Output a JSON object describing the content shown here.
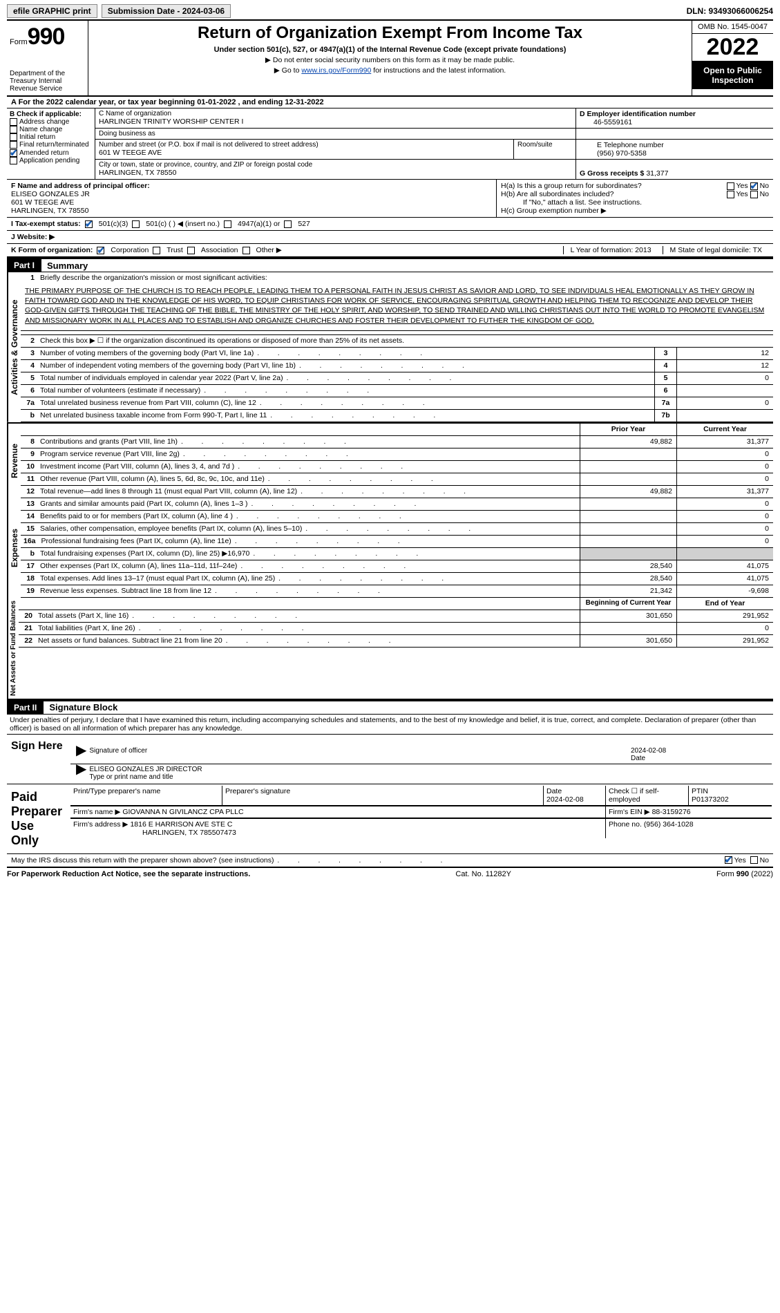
{
  "topbar": {
    "efile_label": "efile GRAPHIC print",
    "submission_label": "Submission Date - 2024-03-06",
    "dln_label": "DLN: 93493066006254"
  },
  "header": {
    "form_word": "Form",
    "form_number": "990",
    "dept": "Department of the Treasury Internal Revenue Service",
    "title": "Return of Organization Exempt From Income Tax",
    "subtitle": "Under section 501(c), 527, or 4947(a)(1) of the Internal Revenue Code (except private foundations)",
    "note1": "▶ Do not enter social security numbers on this form as it may be made public.",
    "note2_pre": "▶ Go to ",
    "note2_link": "www.irs.gov/Form990",
    "note2_post": " for instructions and the latest information.",
    "omb": "OMB No. 1545-0047",
    "year": "2022",
    "open_pub": "Open to Public Inspection"
  },
  "line_a": "A For the 2022 calendar year, or tax year beginning 01-01-2022   , and ending 12-31-2022",
  "box_b": {
    "title": "B Check if applicable:",
    "items": [
      "Address change",
      "Name change",
      "Initial return",
      "Final return/terminated",
      "Amended return",
      "Application pending"
    ],
    "checked_index": 4
  },
  "box_c": {
    "label_name": "C Name of organization",
    "org_name": "HARLINGEN TRINITY WORSHIP CENTER I",
    "dba_label": "Doing business as",
    "dba": "",
    "addr_label": "Number and street (or P.O. box if mail is not delivered to street address)",
    "addr": "601 W TEEGE AVE",
    "suite_label": "Room/suite",
    "city_label": "City or town, state or province, country, and ZIP or foreign postal code",
    "city": "HARLINGEN, TX  78550"
  },
  "box_d": {
    "label": "D Employer identification number",
    "value": "46-5559161"
  },
  "box_e": {
    "label": "E Telephone number",
    "value": "(956) 970-5358"
  },
  "box_g": {
    "label": "G Gross receipts $",
    "value": "31,377"
  },
  "box_f": {
    "label": "F  Name and address of principal officer:",
    "name": "ELISEO GONZALES JR",
    "addr1": "601 W TEEGE AVE",
    "addr2": "HARLINGEN, TX  78550"
  },
  "box_h": {
    "ha_label": "H(a)  Is this a group return for subordinates?",
    "ha_yes": "Yes",
    "ha_no": "No",
    "ha_checked": "No",
    "hb_label": "H(b)  Are all subordinates included?",
    "hb_yes": "Yes",
    "hb_no": "No",
    "h_note": "If \"No,\" attach a list. See instructions.",
    "hc_label": "H(c)  Group exemption number ▶"
  },
  "line_i": {
    "label": "I   Tax-exempt status:",
    "opts": [
      "501(c)(3)",
      "501(c) (  ) ◀ (insert no.)",
      "4947(a)(1) or",
      "527"
    ],
    "checked_index": 0
  },
  "line_j": {
    "label": "J   Website: ▶"
  },
  "line_k": {
    "label": "K Form of organization:",
    "opts": [
      "Corporation",
      "Trust",
      "Association",
      "Other ▶"
    ],
    "checked_index": 0,
    "l_label": "L Year of formation: 2013",
    "m_label": "M State of legal domicile: TX"
  },
  "parts": {
    "p1_label": "Part I",
    "p1_title": "Summary",
    "p2_label": "Part II",
    "p2_title": "Signature Block"
  },
  "summary": {
    "line1_label": "Briefly describe the organization's mission or most significant activities:",
    "mission": "THE PRIMARY PURPOSE OF THE CHURCH IS TO REACH PEOPLE, LEADING THEM TO A PERSONAL FAITH IN JESUS CHRIST AS SAVIOR AND LORD, TO SEE INDIVIDUALS HEAL EMOTIONALLY AS THEY GROW IN FAITH TOWARD GOD AND IN THE KNOWLEDGE OF HIS WORD, TO EQUIP CHRISTIANS FOR WORK OF SERVICE, ENCOURAGING SPIRITUAL GROWTH AND HELPING THEM TO RECOGNIZE AND DEVELOP THEIR GOD-GIVEN GIFTS THROUGH THE TEACHING OF THE BIBLE, THE MINISTRY OF THE HOLY SPIRIT, AND WORSHIP, TO SEND TRAINED AND WILLING CHRISTIANS OUT INTO THE WORLD TO PROMOTE EVANGELISM AND MISSIONARY WORK IN ALL PLACES AND TO ESTABLISH AND ORGANIZE CHURCHES AND FOSTER THEIR DEVELOPMENT TO FUTHER THE KINGDOM OF GOD.",
    "line2": "Check this box ▶ ☐  if the organization discontinued its operations or disposed of more than 25% of its net assets.",
    "rows_single": [
      {
        "n": "3",
        "t": "Number of voting members of the governing body (Part VI, line 1a)",
        "box": "3",
        "v": "12"
      },
      {
        "n": "4",
        "t": "Number of independent voting members of the governing body (Part VI, line 1b)",
        "box": "4",
        "v": "12"
      },
      {
        "n": "5",
        "t": "Total number of individuals employed in calendar year 2022 (Part V, line 2a)",
        "box": "5",
        "v": "0"
      },
      {
        "n": "6",
        "t": "Total number of volunteers (estimate if necessary)",
        "box": "6",
        "v": ""
      },
      {
        "n": "7a",
        "t": "Total unrelated business revenue from Part VIII, column (C), line 12",
        "box": "7a",
        "v": "0"
      },
      {
        "n": "b",
        "t": "Net unrelated business taxable income from Form 990-T, Part I, line 11",
        "box": "7b",
        "v": ""
      }
    ],
    "col_hdr_prior": "Prior Year",
    "col_hdr_curr": "Current Year",
    "sections": [
      {
        "side": "Activities & Governance",
        "type": "gov"
      },
      {
        "side": "Revenue",
        "rows": [
          {
            "n": "8",
            "t": "Contributions and grants (Part VIII, line 1h)",
            "p": "49,882",
            "c": "31,377"
          },
          {
            "n": "9",
            "t": "Program service revenue (Part VIII, line 2g)",
            "p": "",
            "c": "0"
          },
          {
            "n": "10",
            "t": "Investment income (Part VIII, column (A), lines 3, 4, and 7d )",
            "p": "",
            "c": "0"
          },
          {
            "n": "11",
            "t": "Other revenue (Part VIII, column (A), lines 5, 6d, 8c, 9c, 10c, and 11e)",
            "p": "",
            "c": "0"
          },
          {
            "n": "12",
            "t": "Total revenue—add lines 8 through 11 (must equal Part VIII, column (A), line 12)",
            "p": "49,882",
            "c": "31,377"
          }
        ]
      },
      {
        "side": "Expenses",
        "rows": [
          {
            "n": "13",
            "t": "Grants and similar amounts paid (Part IX, column (A), lines 1–3 )",
            "p": "",
            "c": "0"
          },
          {
            "n": "14",
            "t": "Benefits paid to or for members (Part IX, column (A), line 4 )",
            "p": "",
            "c": "0"
          },
          {
            "n": "15",
            "t": "Salaries, other compensation, employee benefits (Part IX, column (A), lines 5–10)",
            "p": "",
            "c": "0"
          },
          {
            "n": "16a",
            "t": "Professional fundraising fees (Part IX, column (A), line 11e)",
            "p": "",
            "c": "0"
          },
          {
            "n": "b",
            "t": "Total fundraising expenses (Part IX, column (D), line 25) ▶16,970",
            "p": "shade",
            "c": "shade"
          },
          {
            "n": "17",
            "t": "Other expenses (Part IX, column (A), lines 11a–11d, 11f–24e)",
            "p": "28,540",
            "c": "41,075"
          },
          {
            "n": "18",
            "t": "Total expenses. Add lines 13–17 (must equal Part IX, column (A), line 25)",
            "p": "28,540",
            "c": "41,075"
          },
          {
            "n": "19",
            "t": "Revenue less expenses. Subtract line 18 from line 12",
            "p": "21,342",
            "c": "-9,698"
          }
        ]
      },
      {
        "side": "Net Assets or Fund Balances",
        "hdr_p": "Beginning of Current Year",
        "hdr_c": "End of Year",
        "rows": [
          {
            "n": "20",
            "t": "Total assets (Part X, line 16)",
            "p": "301,650",
            "c": "291,952"
          },
          {
            "n": "21",
            "t": "Total liabilities (Part X, line 26)",
            "p": "",
            "c": "0"
          },
          {
            "n": "22",
            "t": "Net assets or fund balances. Subtract line 21 from line 20",
            "p": "301,650",
            "c": "291,952"
          }
        ]
      }
    ]
  },
  "sig": {
    "penalty": "Under penalties of perjury, I declare that I have examined this return, including accompanying schedules and statements, and to the best of my knowledge and belief, it is true, correct, and complete. Declaration of preparer (other than officer) is based on all information of which preparer has any knowledge.",
    "sign_here": "Sign Here",
    "sig_officer": "Signature of officer",
    "date_label": "Date",
    "date_val": "2024-02-08",
    "name_line": "ELISEO GONZALES JR  DIRECTOR",
    "type_label": "Type or print name and title",
    "paid_label": "Paid Preparer Use Only",
    "prep_cols": [
      "Print/Type preparer's name",
      "Preparer's signature",
      "Date",
      "Check ☐ if self-employed",
      "PTIN"
    ],
    "prep_date": "2024-02-08",
    "ptin": "P01373202",
    "firm_name_label": "Firm's name    ▶",
    "firm_name": "GIOVANNA N GIVILANCZ CPA PLLC",
    "firm_ein_label": "Firm's EIN ▶",
    "firm_ein": "88-3159276",
    "firm_addr_label": "Firm's address ▶",
    "firm_addr": "1816 E HARRISON AVE STE C",
    "firm_city": "HARLINGEN, TX  785507473",
    "phone_label": "Phone no.",
    "phone": "(956) 364-1028",
    "discuss": "May the IRS discuss this return with the preparer shown above? (see instructions)",
    "discuss_yes": "Yes",
    "discuss_no": "No"
  },
  "footer": {
    "left": "For Paperwork Reduction Act Notice, see the separate instructions.",
    "mid": "Cat. No. 11282Y",
    "right": "Form 990 (2022)"
  }
}
